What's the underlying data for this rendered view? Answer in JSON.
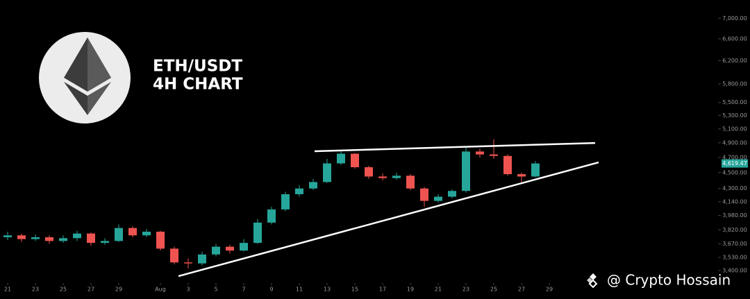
{
  "chart_data": {
    "type": "candlestick",
    "title": "ETH/USDT",
    "subtitle": "4H CHART",
    "watermark": "@ Crypto Hossain",
    "log_scale": true,
    "up_color": "#26a69a",
    "down_color": "#ef5350",
    "x": [
      1,
      2,
      3,
      4,
      5,
      6,
      7,
      8,
      9,
      10,
      11,
      12,
      13,
      14,
      15,
      16,
      17,
      18,
      19,
      20,
      21,
      22,
      23,
      24,
      25,
      26,
      27,
      28,
      29,
      30,
      31,
      32,
      33,
      34,
      35,
      36,
      37,
      38,
      39
    ],
    "open": [
      3740,
      3760,
      3720,
      3740,
      3700,
      3730,
      3780,
      3680,
      3700,
      3840,
      3760,
      3800,
      3620,
      3480,
      3470,
      3560,
      3640,
      3600,
      3680,
      3900,
      4050,
      4230,
      4300,
      4380,
      4620,
      4750,
      4570,
      4450,
      4430,
      4460,
      4300,
      4150,
      4200,
      4270,
      4780,
      4740,
      4720,
      4480,
      4450
    ],
    "high": [
      3800,
      3780,
      3770,
      3760,
      3760,
      3810,
      3790,
      3730,
      3880,
      3860,
      3830,
      3810,
      3640,
      3520,
      3590,
      3670,
      3660,
      3720,
      3940,
      4080,
      4260,
      4340,
      4420,
      4680,
      4790,
      4760,
      4590,
      4490,
      4500,
      4480,
      4320,
      4230,
      4290,
      4850,
      4820,
      4950,
      4740,
      4500,
      4650
    ],
    "low": [
      3710,
      3690,
      3700,
      3670,
      3680,
      3700,
      3650,
      3660,
      3690,
      3740,
      3740,
      3600,
      3460,
      3420,
      3450,
      3540,
      3570,
      3590,
      3670,
      3880,
      4030,
      4200,
      4280,
      4370,
      4600,
      4550,
      4420,
      4400,
      4410,
      4280,
      4080,
      4130,
      4180,
      4250,
      4700,
      4680,
      4460,
      4380,
      4440
    ],
    "close": [
      3760,
      3720,
      3740,
      3700,
      3730,
      3780,
      3680,
      3700,
      3840,
      3760,
      3800,
      3620,
      3480,
      3470,
      3560,
      3640,
      3600,
      3680,
      3900,
      4050,
      4230,
      4300,
      4380,
      4620,
      4750,
      4570,
      4450,
      4430,
      4460,
      4300,
      4150,
      4200,
      4270,
      4780,
      4740,
      4720,
      4480,
      4450,
      4619.47
    ],
    "last_price_label": "4,619.47",
    "trendlines": [
      {
        "x": [
          23.1,
          43.3
        ],
        "y": [
          4784,
          4898
        ]
      },
      {
        "x": [
          13.3,
          43.55
        ],
        "y": [
          3346,
          4634
        ]
      }
    ],
    "xlim": [
      0.45,
      51.95
    ],
    "ylim": [
      3300,
      7375
    ],
    "xticks": [
      {
        "value": 1,
        "label": "21"
      },
      {
        "value": 3,
        "label": "23"
      },
      {
        "value": 5,
        "label": "25"
      },
      {
        "value": 7,
        "label": "27"
      },
      {
        "value": 9,
        "label": "29"
      },
      {
        "value": 12,
        "label": "Aug"
      },
      {
        "value": 14,
        "label": "3"
      },
      {
        "value": 16,
        "label": "5"
      },
      {
        "value": 18,
        "label": "7"
      },
      {
        "value": 20,
        "label": "9"
      },
      {
        "value": 22,
        "label": "11"
      },
      {
        "value": 24,
        "label": "13"
      },
      {
        "value": 26,
        "label": "15"
      },
      {
        "value": 28,
        "label": "17"
      },
      {
        "value": 30,
        "label": "19"
      },
      {
        "value": 32,
        "label": "21"
      },
      {
        "value": 34,
        "label": "23"
      },
      {
        "value": 36,
        "label": "25"
      },
      {
        "value": 38,
        "label": "27"
      },
      {
        "value": 40,
        "label": "29"
      }
    ],
    "yticks": [
      {
        "value": 7000,
        "label": "7,000.00"
      },
      {
        "value": 6600,
        "label": "6,600.00"
      },
      {
        "value": 6200,
        "label": "6,200.00"
      },
      {
        "value": 5800,
        "label": "5,800.00"
      },
      {
        "value": 5500,
        "label": "5,500.00"
      },
      {
        "value": 5300,
        "label": "5,300.00"
      },
      {
        "value": 5100,
        "label": "5,100.00"
      },
      {
        "value": 4900,
        "label": "4,900.00"
      },
      {
        "value": 4700,
        "label": "4,700.00"
      },
      {
        "value": 4500,
        "label": "4,500.00"
      },
      {
        "value": 4300,
        "label": "4,300.00"
      },
      {
        "value": 4140,
        "label": "4,140.00"
      },
      {
        "value": 3980,
        "label": "3,980.00"
      },
      {
        "value": 3820,
        "label": "3,820.00"
      },
      {
        "value": 3670,
        "label": "3,670.00"
      },
      {
        "value": 3530,
        "label": "3,530.00"
      },
      {
        "value": 3400,
        "label": "3,400.00"
      }
    ]
  }
}
